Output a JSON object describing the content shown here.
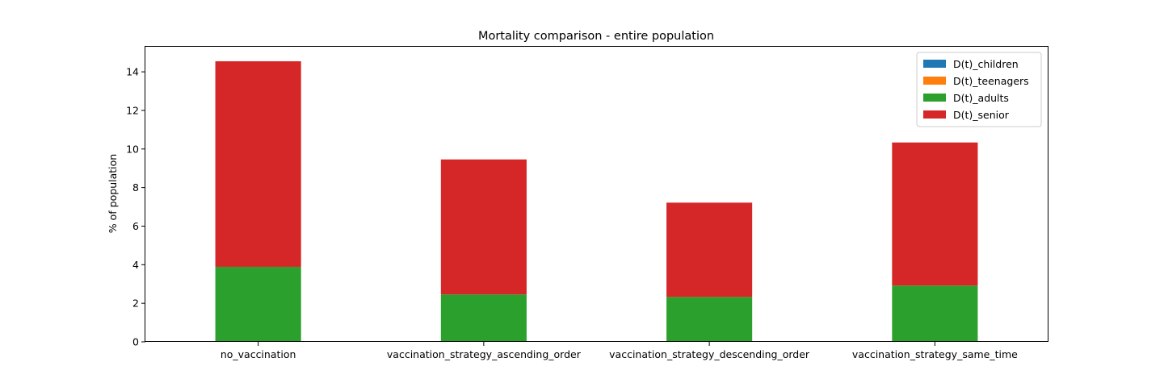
{
  "chart_data": {
    "type": "bar",
    "stacked": true,
    "title": "Mortality comparison -  entire population",
    "xlabel": "",
    "ylabel": "% of population",
    "ylim": [
      0,
      15.3
    ],
    "yticks": [
      0,
      2,
      4,
      6,
      8,
      10,
      12,
      14
    ],
    "grid": false,
    "legend_position": "top-right",
    "categories": [
      "no_vaccination",
      "vaccination_strategy_ascending_order",
      "vaccination_strategy_descending_order",
      "vaccination_strategy_same_time"
    ],
    "series": [
      {
        "name": "D(t)_children",
        "color": "#1f77b4",
        "values": [
          0.003,
          0.003,
          0.003,
          0.003
        ]
      },
      {
        "name": "D(t)_teenagers",
        "color": "#ff7f0e",
        "values": [
          0.006,
          0.005,
          0.005,
          0.005
        ]
      },
      {
        "name": "D(t)_adults",
        "color": "#2ca02c",
        "values": [
          3.88,
          2.45,
          2.32,
          2.91
        ]
      },
      {
        "name": "D(t)_senior",
        "color": "#d62728",
        "values": [
          10.66,
          7.0,
          4.89,
          7.42
        ]
      }
    ]
  }
}
